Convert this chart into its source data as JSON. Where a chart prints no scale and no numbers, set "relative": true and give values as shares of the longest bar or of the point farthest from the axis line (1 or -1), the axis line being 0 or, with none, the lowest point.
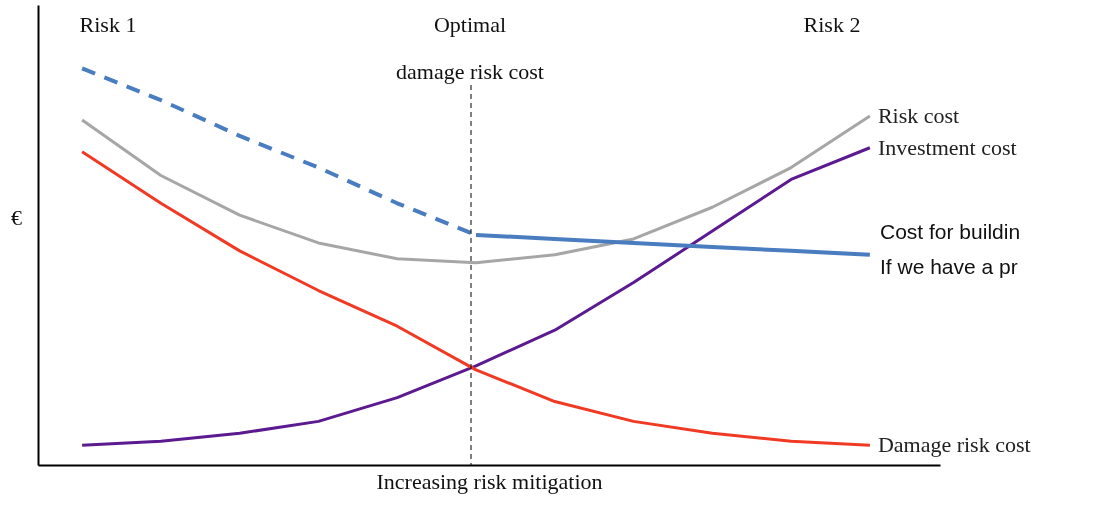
{
  "chart_data": {
    "type": "line",
    "relative": true,
    "xlabel": "Increasing risk mitigation",
    "ylabel": "€",
    "categories": [
      null,
      null,
      null,
      null,
      null,
      null,
      null,
      null,
      null,
      null,
      null
    ],
    "series": [
      {
        "name": "Risk cost",
        "color": "#a6a6a6",
        "values": [
          0.87,
          0.73,
          0.63,
          0.56,
          0.52,
          0.51,
          0.53,
          0.57,
          0.65,
          0.75,
          0.88
        ]
      },
      {
        "name": "Investment cost",
        "color": "#5b1a8f",
        "values": [
          0.05,
          0.06,
          0.08,
          0.11,
          0.17,
          0.25,
          0.34,
          0.46,
          0.59,
          0.72,
          0.8
        ]
      },
      {
        "name": "Damage risk cost",
        "color": "#f03a24",
        "values": [
          0.79,
          0.66,
          0.54,
          0.44,
          0.35,
          0.24,
          0.16,
          0.11,
          0.08,
          0.06,
          0.05
        ]
      },
      {
        "color": "#4a7cc0",
        "line_style": "dashed",
        "values": [
          1.0,
          0.92,
          0.83,
          0.75,
          0.66,
          0.58,
          null,
          null,
          null,
          null,
          null
        ]
      },
      {
        "color": "#4a7cc0",
        "line_style": "solid",
        "values": [
          null,
          null,
          null,
          null,
          null,
          0.58,
          0.57,
          0.56,
          0.55,
          0.54,
          0.53
        ]
      }
    ],
    "annotations": [
      "Risk 1",
      "Optimal",
      "damage risk cost",
      "Risk 2",
      "Cost for buildin",
      "If we have a pr"
    ]
  }
}
